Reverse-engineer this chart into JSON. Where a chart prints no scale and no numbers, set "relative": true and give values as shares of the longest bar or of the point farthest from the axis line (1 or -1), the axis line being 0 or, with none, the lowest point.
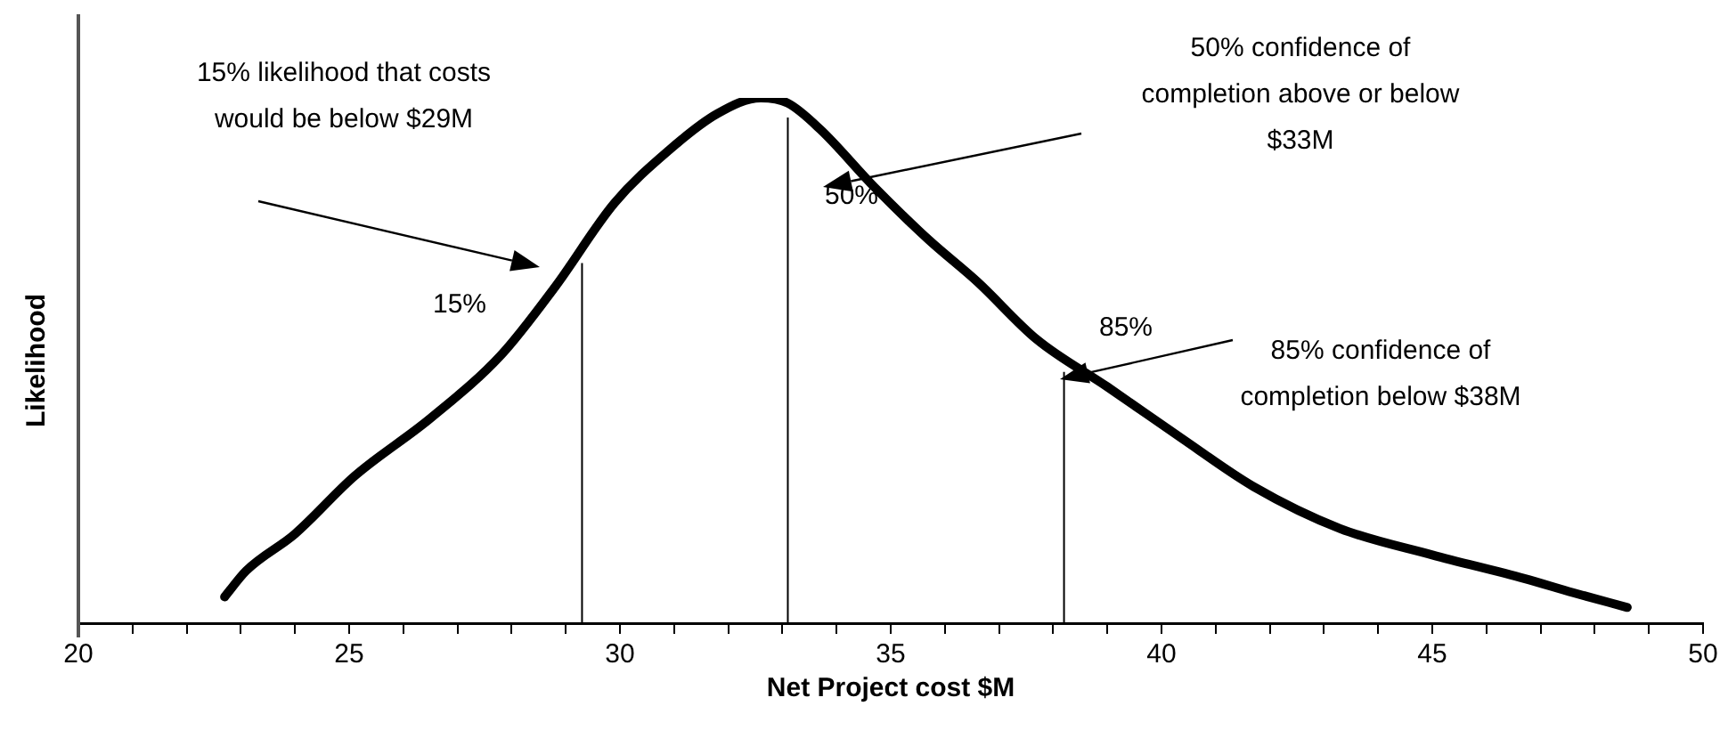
{
  "chart_data": {
    "type": "line",
    "relative": true,
    "xlabel": "Net Project cost $M",
    "ylabel": "Likelihood",
    "xlim": [
      20,
      50
    ],
    "xticks": [
      20,
      {
        "value": 21,
        "label": null
      },
      {
        "value": 22,
        "label": null
      },
      {
        "value": 23,
        "label": null
      },
      {
        "value": 24,
        "label": null
      },
      25,
      {
        "value": 26,
        "label": null
      },
      {
        "value": 27,
        "label": null
      },
      {
        "value": 28,
        "label": null
      },
      {
        "value": 29,
        "label": null
      },
      30,
      {
        "value": 31,
        "label": null
      },
      {
        "value": 32,
        "label": null
      },
      {
        "value": 33,
        "label": null
      },
      {
        "value": 34,
        "label": null
      },
      35,
      {
        "value": 36,
        "label": null
      },
      {
        "value": 37,
        "label": null
      },
      {
        "value": 38,
        "label": null
      },
      {
        "value": 39,
        "label": null
      },
      40,
      {
        "value": 41,
        "label": null
      },
      {
        "value": 42,
        "label": null
      },
      {
        "value": 43,
        "label": null
      },
      {
        "value": 44,
        "label": null
      },
      45,
      {
        "value": 46,
        "label": null
      },
      {
        "value": 47,
        "label": null
      },
      {
        "value": 48,
        "label": null
      },
      {
        "value": 49,
        "label": null
      },
      50
    ],
    "grid": false,
    "legend": false,
    "marker": "none",
    "line_style": "solid",
    "series": [
      {
        "color": "#000000",
        "x": [
          22.7,
          23.1,
          24.0,
          25.1,
          26.5,
          27.8,
          28.8,
          29.9,
          30.9,
          31.8,
          32.6,
          33.1,
          33.7,
          34.7,
          35.7,
          36.6,
          37.7,
          39.0,
          40.4,
          41.7,
          43.3,
          45.0,
          46.7,
          47.6,
          48.6
        ],
        "values": [
          0.05,
          0.1,
          0.17,
          0.28,
          0.39,
          0.51,
          0.64,
          0.8,
          0.9,
          0.97,
          1.0,
          0.99,
          0.94,
          0.83,
          0.73,
          0.65,
          0.54,
          0.45,
          0.35,
          0.26,
          0.18,
          0.13,
          0.085,
          0.058,
          0.03
        ]
      }
    ],
    "ref_lines": [
      {
        "axis": "x",
        "value": 29.3,
        "color": "#000000"
      },
      {
        "axis": "x",
        "value": 33.1,
        "color": "#000000"
      },
      {
        "axis": "x",
        "value": 38.2,
        "color": "#000000"
      }
    ],
    "annotations": [
      "15% likelihood that costs\nwould be below $29M",
      "50% confidence of\ncompletion above or below\n$33M",
      "85% confidence of\ncompletion below $38M",
      "15%",
      "50%",
      "85%"
    ]
  }
}
